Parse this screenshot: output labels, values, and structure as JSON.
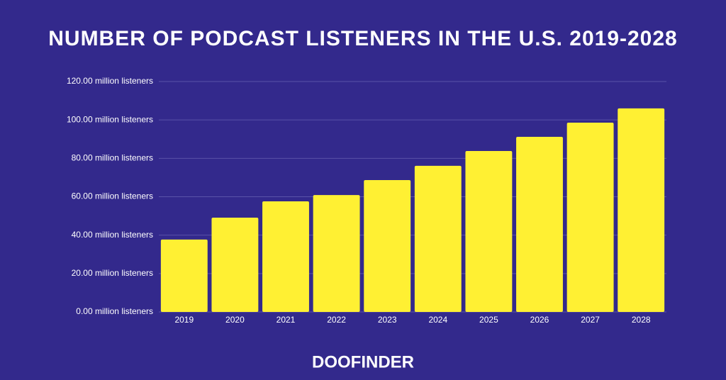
{
  "chart_data": {
    "type": "bar",
    "title": "NUMBER OF PODCAST LISTENERS IN THE U.S. 2019-2028",
    "categories": [
      "2019",
      "2020",
      "2021",
      "2022",
      "2023",
      "2024",
      "2025",
      "2026",
      "2027",
      "2028"
    ],
    "values": [
      37.7,
      49.1,
      57.6,
      60.9,
      68.7,
      76.1,
      83.8,
      91.2,
      98.6,
      106.0
    ],
    "color": "#fff033",
    "ylim": [
      0,
      120
    ],
    "yticks": [
      {
        "value": 0,
        "label": "0.00 million listeners"
      },
      {
        "value": 20,
        "label": "20.00 million listeners"
      },
      {
        "value": 40,
        "label": "40.00 million listeners"
      },
      {
        "value": 60,
        "label": "60.00 million listeners"
      },
      {
        "value": 80,
        "label": "80.00 million listeners"
      },
      {
        "value": 100,
        "label": "100.00 million listeners"
      },
      {
        "value": 120,
        "label": "120.00 million listeners"
      }
    ],
    "grid": true,
    "brand": "DOOFINDER"
  }
}
